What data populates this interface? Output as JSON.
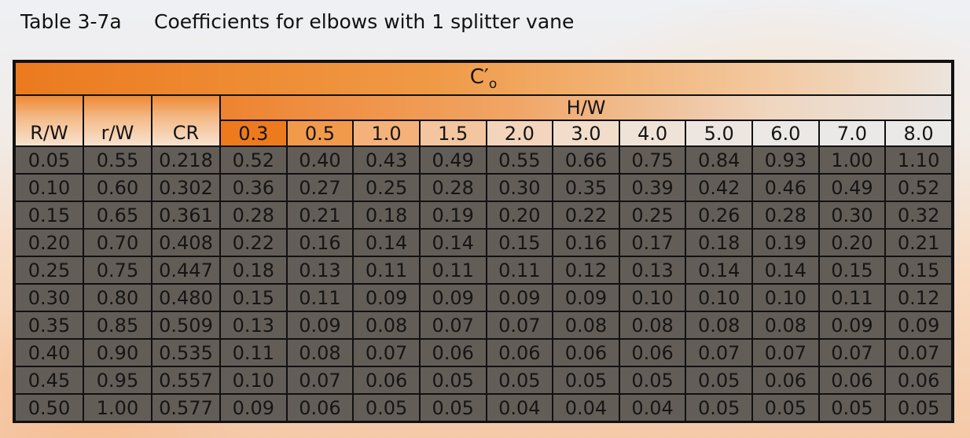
{
  "title": {
    "label": "Table 3-7a",
    "caption": "Coefficients for elbows with 1 splitter vane"
  },
  "table": {
    "main_header": "C′",
    "main_header_sub": "o",
    "group_header": "H/W",
    "row_headers": [
      "R/W",
      "r/W",
      "CR"
    ],
    "hw_values": [
      "0.3",
      "0.5",
      "1.0",
      "1.5",
      "2.0",
      "3.0",
      "4.0",
      "5.0",
      "6.0",
      "7.0",
      "8.0"
    ],
    "rows": [
      [
        "0.05",
        "0.55",
        "0.218",
        "0.52",
        "0.40",
        "0.43",
        "0.49",
        "0.55",
        "0.66",
        "0.75",
        "0.84",
        "0.93",
        "1.00",
        "1.10"
      ],
      [
        "0.10",
        "0.60",
        "0.302",
        "0.36",
        "0.27",
        "0.25",
        "0.28",
        "0.30",
        "0.35",
        "0.39",
        "0.42",
        "0.46",
        "0.49",
        "0.52"
      ],
      [
        "0.15",
        "0.65",
        "0.361",
        "0.28",
        "0.21",
        "0.18",
        "0.19",
        "0.20",
        "0.22",
        "0.25",
        "0.26",
        "0.28",
        "0.30",
        "0.32"
      ],
      [
        "0.20",
        "0.70",
        "0.408",
        "0.22",
        "0.16",
        "0.14",
        "0.14",
        "0.15",
        "0.16",
        "0.17",
        "0.18",
        "0.19",
        "0.20",
        "0.21"
      ],
      [
        "0.25",
        "0.75",
        "0.447",
        "0.18",
        "0.13",
        "0.11",
        "0.11",
        "0.11",
        "0.12",
        "0.13",
        "0.14",
        "0.14",
        "0.15",
        "0.15"
      ],
      [
        "0.30",
        "0.80",
        "0.480",
        "0.15",
        "0.11",
        "0.09",
        "0.09",
        "0.09",
        "0.09",
        "0.10",
        "0.10",
        "0.10",
        "0.11",
        "0.12"
      ],
      [
        "0.35",
        "0.85",
        "0.509",
        "0.13",
        "0.09",
        "0.08",
        "0.07",
        "0.07",
        "0.08",
        "0.08",
        "0.08",
        "0.08",
        "0.09",
        "0.09"
      ],
      [
        "0.40",
        "0.90",
        "0.535",
        "0.11",
        "0.08",
        "0.07",
        "0.06",
        "0.06",
        "0.06",
        "0.06",
        "0.07",
        "0.07",
        "0.07",
        "0.07"
      ],
      [
        "0.45",
        "0.95",
        "0.557",
        "0.10",
        "0.07",
        "0.06",
        "0.05",
        "0.05",
        "0.05",
        "0.05",
        "0.05",
        "0.06",
        "0.06",
        "0.06"
      ],
      [
        "0.50",
        "1.00",
        "0.577",
        "0.09",
        "0.06",
        "0.05",
        "0.05",
        "0.04",
        "0.04",
        "0.04",
        "0.05",
        "0.05",
        "0.05",
        "0.05"
      ]
    ]
  },
  "colors": {
    "accent_orange": "#ee7a1e",
    "border": "#111111"
  }
}
